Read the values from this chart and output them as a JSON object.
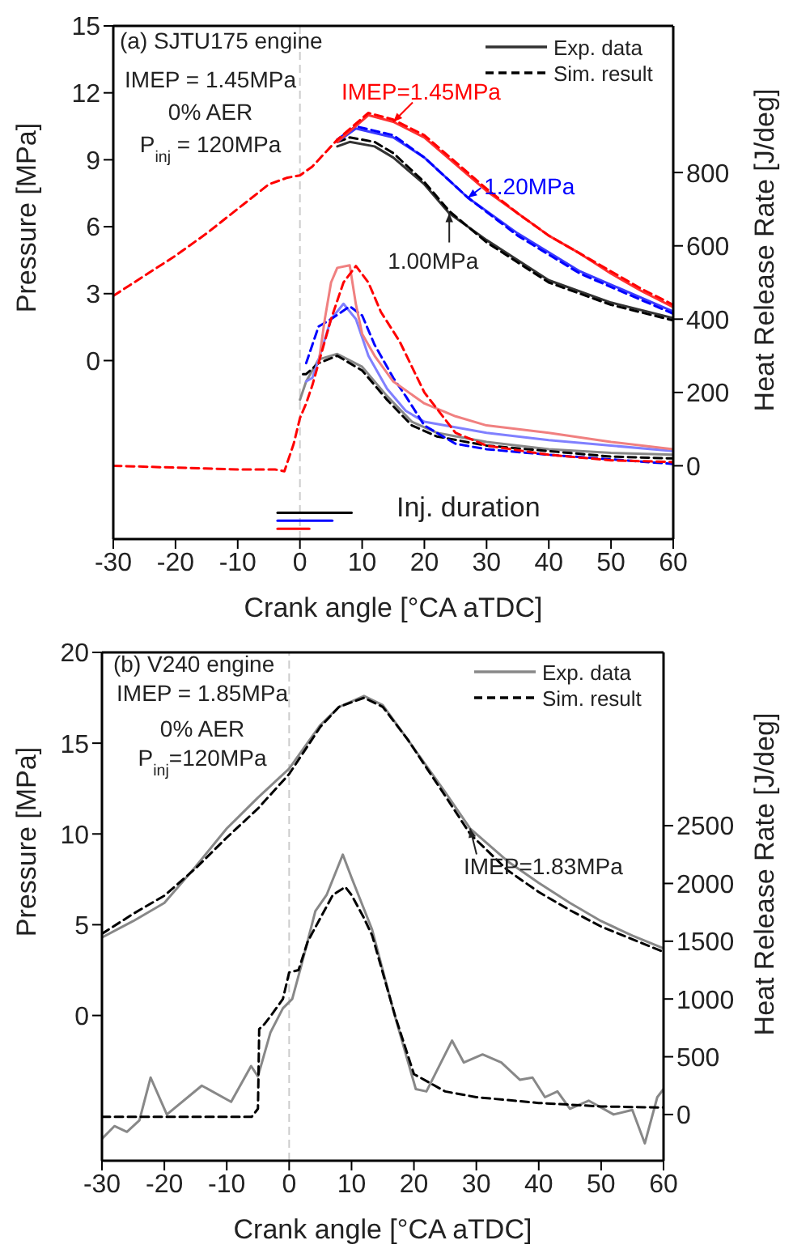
{
  "chart_data": [
    {
      "type": "line",
      "title": "(a) SJTU175 engine",
      "xlabel": "Crank angle [°CA aTDC]",
      "ylabel": "Pressure [MPa]",
      "y2label": "Heat Release Rate [J/deg]",
      "legend": "top right",
      "xlim": [
        -30,
        60
      ],
      "xticks": [
        -30,
        -20,
        -10,
        0,
        10,
        20,
        30,
        40,
        50,
        60
      ],
      "ylim": [
        -8,
        15
      ],
      "yticks": [
        0,
        3,
        6,
        9,
        12,
        15
      ],
      "y2lim": [
        -200,
        1200
      ],
      "y2ticks": [
        0,
        200,
        400,
        600,
        800
      ],
      "ref_lines": [
        {
          "axis": "x",
          "value": 0,
          "color": "#cccccc",
          "line_style": "dashed"
        }
      ],
      "annotations": [
        "IMEP = 1.45MPa",
        "0% AER",
        "P$_{inj}$ = 120MPa",
        {
          "text": "IMEP=1.45MPa",
          "x": 15,
          "y": 10.7
        },
        {
          "text": "1.20MPa",
          "x": 27,
          "y": 7.3
        },
        {
          "text": "1.00MPa",
          "x": 24,
          "y": 6.6
        },
        "Inj. duration"
      ],
      "series": [
        {
          "name": "Exp. data",
          "color": "#333333",
          "line_style": "solid",
          "x": [
            6,
            8,
            12,
            15,
            20,
            24,
            30,
            40,
            50,
            60
          ],
          "values": [
            9.6,
            9.8,
            9.6,
            9.1,
            7.9,
            6.6,
            5.4,
            3.6,
            2.6,
            1.9
          ]
        },
        {
          "name": "Sim. result",
          "color": "#000000",
          "line_style": "dashed",
          "x": [
            6,
            8,
            12,
            15,
            20,
            24,
            30,
            40,
            50,
            60
          ],
          "values": [
            9.8,
            10.0,
            9.8,
            9.3,
            8.0,
            6.7,
            5.3,
            3.5,
            2.5,
            1.8
          ]
        },
        {
          "color": "#3a3aff",
          "line_style": "solid",
          "x": [
            6,
            9,
            15,
            20,
            27,
            35,
            45,
            60
          ],
          "values": [
            9.8,
            10.4,
            10.0,
            9.1,
            7.3,
            5.7,
            4.0,
            2.2
          ]
        },
        {
          "color": "#0000ff",
          "line_style": "dashed",
          "x": [
            6,
            9,
            15,
            20,
            27,
            35,
            45,
            60
          ],
          "values": [
            9.9,
            10.5,
            10.1,
            9.1,
            7.3,
            5.6,
            3.9,
            2.1
          ]
        },
        {
          "color": "#ff3030",
          "line_style": "solid",
          "x": [
            6,
            11,
            15,
            20,
            25,
            30,
            35,
            40,
            45,
            50,
            55,
            60
          ],
          "values": [
            9.8,
            11.0,
            10.7,
            10.0,
            8.8,
            7.6,
            6.6,
            5.6,
            4.8,
            3.9,
            3.1,
            2.4
          ]
        },
        {
          "color": "#ff0000",
          "line_style": "dashed",
          "x": [
            -30,
            -25,
            -20,
            -15,
            -10,
            -5,
            -2,
            0,
            2,
            4,
            6,
            11,
            15,
            20,
            25,
            30,
            35,
            40,
            45,
            50,
            55,
            60
          ],
          "values": [
            2.9,
            3.8,
            4.7,
            5.7,
            6.8,
            7.9,
            8.2,
            8.3,
            8.7,
            9.3,
            9.9,
            11.1,
            10.8,
            10.1,
            8.9,
            7.7,
            6.6,
            5.6,
            4.8,
            4.0,
            3.2,
            2.5
          ]
        },
        {
          "color": "#888888",
          "line_style": "solid",
          "axis": "y2",
          "x": [
            0,
            1,
            3,
            6,
            10,
            14,
            18,
            22,
            30,
            40,
            50,
            60
          ],
          "values": [
            180,
            230,
            290,
            305,
            270,
            190,
            120,
            90,
            65,
            45,
            35,
            30
          ]
        },
        {
          "color": "#000000",
          "line_style": "dashed",
          "axis": "y2",
          "x": [
            0.5,
            1,
            3,
            6,
            10,
            14,
            18,
            22,
            30,
            40,
            50,
            60
          ],
          "values": [
            250,
            250,
            280,
            300,
            260,
            180,
            110,
            80,
            55,
            40,
            25,
            20
          ]
        },
        {
          "color": "#8080ff",
          "line_style": "solid",
          "axis": "y2",
          "x": [
            1,
            2,
            3,
            5,
            7,
            9,
            11,
            14,
            17,
            20,
            30,
            40,
            50,
            60
          ],
          "values": [
            230,
            240,
            290,
            400,
            442,
            400,
            300,
            210,
            150,
            120,
            90,
            70,
            55,
            40
          ]
        },
        {
          "color": "#0000ff",
          "line_style": "dashed",
          "axis": "y2",
          "x": [
            1,
            2,
            3,
            5,
            8,
            10,
            12,
            15,
            17,
            20,
            25,
            30,
            40,
            60
          ],
          "values": [
            280,
            330,
            380,
            400,
            435,
            410,
            330,
            240,
            190,
            110,
            60,
            45,
            30,
            5
          ]
        },
        {
          "color": "#f08080",
          "line_style": "solid",
          "axis": "y2",
          "x": [
            3,
            4,
            5,
            6,
            8,
            9,
            10,
            12,
            15,
            20,
            25,
            30,
            40,
            50,
            60
          ],
          "values": [
            280,
            400,
            500,
            540,
            547,
            440,
            360,
            300,
            230,
            170,
            135,
            110,
            90,
            65,
            45
          ]
        },
        {
          "color": "#ff0000",
          "line_style": "dashed",
          "axis": "y2",
          "x": [
            -30,
            -20,
            -10,
            -4,
            -2.5,
            -1,
            0,
            1,
            2,
            3,
            5,
            7,
            9,
            11,
            13,
            16,
            20,
            25,
            30,
            40,
            50,
            60
          ],
          "values": [
            0,
            -5,
            -10,
            -10,
            -15,
            60,
            130,
            170,
            220,
            280,
            400,
            500,
            545,
            500,
            420,
            340,
            200,
            90,
            55,
            30,
            15,
            10
          ]
        },
        {
          "color": "#000000",
          "line_style": "solid",
          "axis": "y2",
          "x": [
            -3.6,
            8.3
          ],
          "values": [
            -128,
            -128
          ]
        },
        {
          "color": "#0000ff",
          "line_style": "solid",
          "axis": "y2",
          "x": [
            -3.6,
            5.2
          ],
          "values": [
            -150,
            -150
          ]
        },
        {
          "color": "#ff0000",
          "line_style": "solid",
          "axis": "y2",
          "x": [
            -3.6,
            1.5
          ],
          "values": [
            -172,
            -172
          ]
        }
      ]
    },
    {
      "type": "line",
      "title": "(b) V240 engine",
      "xlabel": "Crank angle [°CA aTDC]",
      "ylabel": "Pressure [MPa]",
      "y2label": "Heat Release Rate [J/deg]",
      "legend": "top right",
      "xlim": [
        -30,
        60
      ],
      "xticks": [
        -30,
        -20,
        -10,
        0,
        10,
        20,
        30,
        40,
        50,
        60
      ],
      "ylim": [
        -8,
        20
      ],
      "yticks": [
        0,
        5,
        10,
        15,
        20
      ],
      "y2lim": [
        -400,
        4000
      ],
      "y2ticks": [
        0,
        500,
        1000,
        1500,
        2000,
        2500
      ],
      "ref_lines": [
        {
          "axis": "x",
          "value": 0,
          "color": "#cccccc",
          "line_style": "dashed"
        }
      ],
      "annotations": [
        "IMEP = 1.85MPa",
        "0% AER",
        "P$_{inj}$=120MPa",
        {
          "text": "IMEP=1.83MPa",
          "x": 29,
          "y": 10.3
        }
      ],
      "series": [
        {
          "name": "Exp. data",
          "color": "#888888",
          "line_style": "solid",
          "x": [
            -30,
            -25,
            -20,
            -15,
            -10,
            -5,
            0,
            5,
            8,
            12,
            15,
            19,
            25,
            29,
            35,
            40,
            45,
            50,
            55,
            60
          ],
          "values": [
            4.3,
            5.2,
            6.2,
            8.2,
            10.3,
            12.0,
            13.6,
            16.0,
            17.0,
            17.6,
            17.1,
            15.2,
            12.3,
            10.3,
            8.5,
            7.3,
            6.2,
            5.2,
            4.4,
            3.7
          ]
        },
        {
          "name": "Sim. result",
          "color": "#000000",
          "line_style": "dashed",
          "x": [
            -30,
            -25,
            -20,
            -15,
            -10,
            -5,
            0,
            5,
            8,
            12,
            15,
            19,
            25,
            29,
            35,
            40,
            45,
            50,
            55,
            60
          ],
          "values": [
            4.5,
            5.6,
            6.6,
            8.1,
            9.8,
            11.4,
            13.3,
            15.9,
            17.0,
            17.5,
            17.0,
            15.2,
            12.1,
            10.0,
            8.0,
            6.8,
            5.8,
            4.9,
            4.2,
            3.5
          ]
        },
        {
          "color": "#888888",
          "line_style": "solid",
          "axis": "y2",
          "x": [
            -30,
            -28,
            -26,
            -24,
            -22.2,
            -19.6,
            -14,
            -9.3,
            -6.1,
            -5,
            -3,
            -1,
            0.5,
            2,
            4.2,
            6,
            8.6,
            10,
            13.3,
            16.7,
            20.3,
            22,
            26.1,
            28,
            31,
            34,
            37,
            39,
            41,
            43,
            45,
            48,
            52,
            55,
            57,
            59,
            60
          ],
          "values": [
            -210,
            -100,
            -150,
            -50,
            320,
            0,
            250,
            110,
            420,
            330,
            710,
            920,
            1000,
            1300,
            1760,
            1900,
            2250,
            2050,
            1600,
            900,
            220,
            200,
            640,
            450,
            520,
            450,
            300,
            320,
            150,
            200,
            50,
            120,
            0,
            40,
            -250,
            150,
            220
          ]
        },
        {
          "color": "#000000",
          "line_style": "dashed",
          "axis": "y2",
          "x": [
            -30,
            -6,
            -5,
            -4.8,
            -4,
            -3,
            -1,
            0,
            1.5,
            3,
            5,
            7,
            9,
            10,
            12,
            13.3,
            17,
            20,
            25,
            30,
            40,
            50,
            60
          ],
          "values": [
            -20,
            -20,
            50,
            740,
            780,
            850,
            1000,
            1230,
            1250,
            1500,
            1700,
            1900,
            1970,
            1900,
            1700,
            1550,
            850,
            350,
            200,
            150,
            100,
            70,
            60
          ]
        }
      ]
    }
  ]
}
